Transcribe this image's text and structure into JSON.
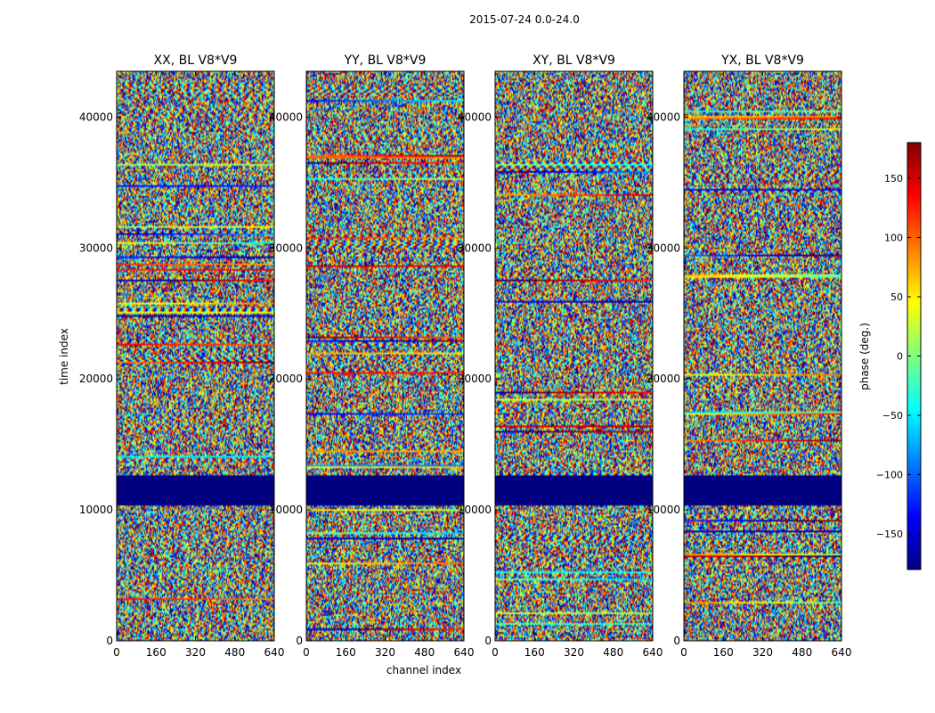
{
  "chart_data": {
    "type": "heatmap",
    "suptitle": "2015-07-24 0.0-24.0",
    "xlabel": "channel index",
    "ylabel": "time index",
    "colorbar_label": "phase (deg.)",
    "colormap": "jet",
    "xlim": [
      0,
      640
    ],
    "ylim": [
      0,
      43500
    ],
    "x_ticks": [
      0,
      160,
      320,
      480,
      640
    ],
    "y_ticks": [
      0,
      10000,
      20000,
      30000,
      40000
    ],
    "clim": [
      -180,
      180
    ],
    "colorbar_ticks": [
      -150,
      -100,
      -50,
      0,
      50,
      100,
      150
    ],
    "colorbar_tick_labels": [
      "−150",
      "−100",
      "−50",
      "0",
      "50",
      "100",
      "150"
    ],
    "masked_band": [
      10400,
      12700
    ],
    "panels": [
      {
        "title": "XX, BL V8*V9",
        "polarization": "XX"
      },
      {
        "title": "YY, BL V8*V9",
        "polarization": "YY"
      },
      {
        "title": "XY, BL V8*V9",
        "polarization": "XY"
      },
      {
        "title": "YX, BL V8*V9",
        "polarization": "YX"
      }
    ]
  }
}
